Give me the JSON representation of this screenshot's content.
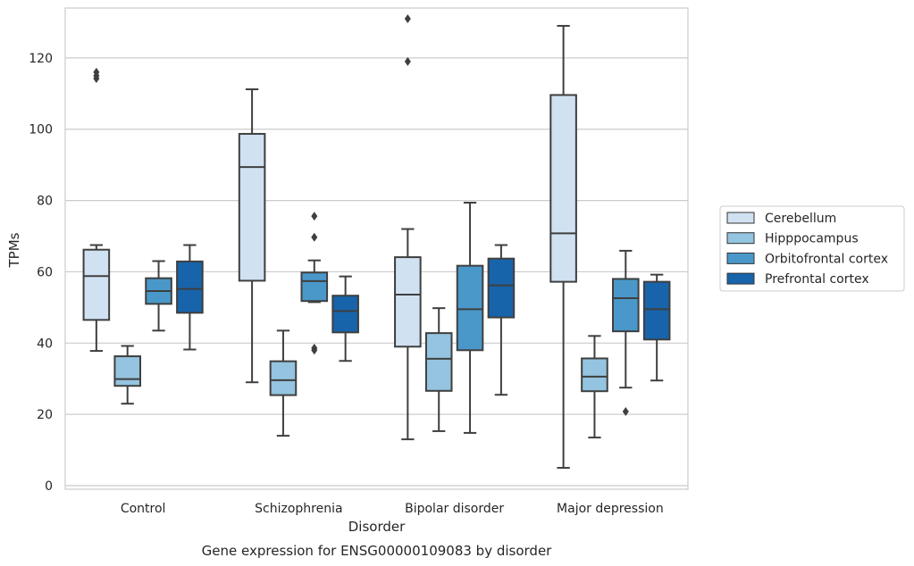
{
  "chart_data": {
    "type": "box",
    "title": "",
    "caption": "Gene expression for ENSG00000109083 by disorder",
    "xlabel": "Disorder",
    "ylabel": "TPMs",
    "ylim": [
      -1,
      134
    ],
    "yticks": [
      0,
      20,
      40,
      60,
      80,
      100,
      120
    ],
    "categories": [
      "Control",
      "Schizophrenia",
      "Bipolar disorder",
      "Major depression"
    ],
    "grid": "horizontal",
    "legend_position": "right",
    "series": [
      {
        "name": "Cerebellum",
        "color": "#d0e1f2",
        "boxes": [
          {
            "whisker_low": 37.8,
            "q1": 46.5,
            "median": 58.8,
            "q3": 66.2,
            "whisker_high": 67.5,
            "outliers": [
              114.2,
              115.0,
              116.0
            ]
          },
          {
            "whisker_low": 29.0,
            "q1": 57.5,
            "median": 89.4,
            "q3": 98.7,
            "whisker_high": 111.2,
            "outliers": []
          },
          {
            "whisker_low": 13.0,
            "q1": 39.0,
            "median": 53.6,
            "q3": 64.1,
            "whisker_high": 72.0,
            "outliers": [
              119.0,
              131.0
            ]
          },
          {
            "whisker_low": 5.0,
            "q1": 57.2,
            "median": 70.8,
            "q3": 109.6,
            "whisker_high": 129.0,
            "outliers": []
          }
        ]
      },
      {
        "name": "Hipppocampus",
        "color": "#94c4df",
        "boxes": [
          {
            "whisker_low": 23.0,
            "q1": 28.0,
            "median": 29.9,
            "q3": 36.3,
            "whisker_high": 39.2,
            "outliers": []
          },
          {
            "whisker_low": 14.0,
            "q1": 25.4,
            "median": 29.6,
            "q3": 34.9,
            "whisker_high": 43.5,
            "outliers": []
          },
          {
            "whisker_low": 15.3,
            "q1": 26.6,
            "median": 35.6,
            "q3": 42.8,
            "whisker_high": 49.8,
            "outliers": []
          },
          {
            "whisker_low": 13.5,
            "q1": 26.5,
            "median": 30.6,
            "q3": 35.7,
            "whisker_high": 42.0,
            "outliers": []
          }
        ]
      },
      {
        "name": "Orbitofrontal cortex",
        "color": "#4a98c9",
        "boxes": [
          {
            "whisker_low": 43.5,
            "q1": 51.0,
            "median": 54.6,
            "q3": 58.2,
            "whisker_high": 63.0,
            "outliers": []
          },
          {
            "whisker_low": 51.5,
            "q1": 51.8,
            "median": 57.4,
            "q3": 59.8,
            "whisker_high": 63.2,
            "outliers": [
              38.0,
              38.6,
              75.6,
              69.7
            ]
          },
          {
            "whisker_low": 14.8,
            "q1": 38.0,
            "median": 49.5,
            "q3": 61.7,
            "whisker_high": 79.4,
            "outliers": []
          },
          {
            "whisker_low": 27.5,
            "q1": 43.3,
            "median": 52.6,
            "q3": 58.0,
            "whisker_high": 65.9,
            "outliers": [
              20.8
            ]
          }
        ]
      },
      {
        "name": "Prefrontal cortex",
        "color": "#1764ab",
        "boxes": [
          {
            "whisker_low": 38.2,
            "q1": 48.5,
            "median": 55.2,
            "q3": 62.9,
            "whisker_high": 67.5,
            "outliers": []
          },
          {
            "whisker_low": 35.0,
            "q1": 43.0,
            "median": 49.0,
            "q3": 53.3,
            "whisker_high": 58.7,
            "outliers": []
          },
          {
            "whisker_low": 25.5,
            "q1": 47.2,
            "median": 56.2,
            "q3": 63.7,
            "whisker_high": 67.5,
            "outliers": []
          },
          {
            "whisker_low": 29.5,
            "q1": 41.0,
            "median": 49.5,
            "q3": 57.2,
            "whisker_high": 59.2,
            "outliers": []
          }
        ]
      }
    ]
  }
}
